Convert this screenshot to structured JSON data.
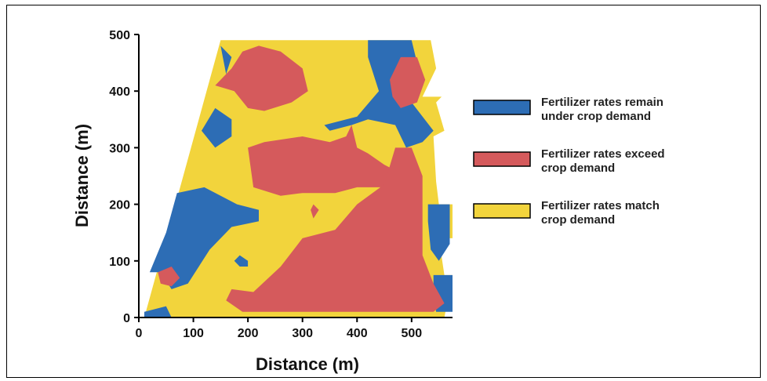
{
  "chart_data": {
    "type": "map",
    "xlabel": "Distance (m)",
    "ylabel": "Distance (m)",
    "xlim": [
      0,
      575
    ],
    "ylim": [
      0,
      500
    ],
    "xticks": [
      0,
      100,
      200,
      300,
      400,
      500
    ],
    "yticks": [
      0,
      100,
      200,
      300,
      400,
      500
    ],
    "colors": {
      "under": "#2d6db5",
      "exceed": "#d55a5c",
      "match": "#f2d43c"
    },
    "legend": [
      {
        "key": "under",
        "lines": [
          "Fertilizer rates remain",
          "under crop demand"
        ]
      },
      {
        "key": "exceed",
        "lines": [
          "Fertilizer rates exceed",
          "crop demand"
        ]
      },
      {
        "key": "match",
        "lines": [
          "Fertilizer rates match",
          "crop demand"
        ]
      }
    ],
    "legend_position": "right",
    "field_boundary": [
      [
        10,
        0
      ],
      [
        560,
        0
      ],
      [
        575,
        75
      ],
      [
        560,
        75
      ],
      [
        550,
        140
      ],
      [
        575,
        140
      ],
      [
        575,
        200
      ],
      [
        550,
        200
      ],
      [
        545,
        240
      ],
      [
        540,
        320
      ],
      [
        560,
        330
      ],
      [
        545,
        380
      ],
      [
        555,
        390
      ],
      [
        520,
        390
      ],
      [
        545,
        440
      ],
      [
        535,
        490
      ],
      [
        150,
        490
      ]
    ],
    "regions": [
      {
        "zone": "under",
        "points": [
          [
            10,
            0
          ],
          [
            60,
            0
          ],
          [
            50,
            20
          ],
          [
            10,
            10
          ]
        ]
      },
      {
        "zone": "under",
        "points": [
          [
            20,
            80
          ],
          [
            50,
            150
          ],
          [
            70,
            220
          ],
          [
            120,
            230
          ],
          [
            180,
            200
          ],
          [
            220,
            190
          ],
          [
            220,
            170
          ],
          [
            170,
            160
          ],
          [
            130,
            120
          ],
          [
            90,
            60
          ],
          [
            60,
            50
          ],
          [
            40,
            80
          ]
        ]
      },
      {
        "zone": "under",
        "points": [
          [
            185,
            110
          ],
          [
            200,
            100
          ],
          [
            200,
            90
          ],
          [
            185,
            90
          ],
          [
            175,
            100
          ]
        ]
      },
      {
        "zone": "under",
        "points": [
          [
            115,
            330
          ],
          [
            140,
            370
          ],
          [
            170,
            350
          ],
          [
            170,
            320
          ],
          [
            140,
            300
          ]
        ]
      },
      {
        "zone": "under",
        "points": [
          [
            150,
            480
          ],
          [
            160,
            430
          ],
          [
            170,
            460
          ]
        ]
      },
      {
        "zone": "under",
        "points": [
          [
            340,
            340
          ],
          [
            400,
            355
          ],
          [
            440,
            400
          ],
          [
            420,
            460
          ],
          [
            420,
            490
          ],
          [
            500,
            490
          ],
          [
            510,
            450
          ],
          [
            490,
            420
          ],
          [
            500,
            380
          ],
          [
            540,
            330
          ],
          [
            520,
            310
          ],
          [
            490,
            300
          ],
          [
            470,
            340
          ],
          [
            420,
            350
          ],
          [
            390,
            340
          ],
          [
            350,
            330
          ]
        ]
      },
      {
        "zone": "under",
        "points": [
          [
            530,
            200
          ],
          [
            570,
            200
          ],
          [
            570,
            130
          ],
          [
            550,
            100
          ],
          [
            535,
            120
          ],
          [
            530,
            170
          ]
        ]
      },
      {
        "zone": "under",
        "points": [
          [
            540,
            75
          ],
          [
            575,
            75
          ],
          [
            575,
            10
          ],
          [
            545,
            10
          ],
          [
            540,
            40
          ]
        ]
      },
      {
        "zone": "exceed",
        "points": [
          [
            35,
            80
          ],
          [
            60,
            90
          ],
          [
            75,
            70
          ],
          [
            60,
            55
          ],
          [
            40,
            60
          ]
        ]
      },
      {
        "zone": "exceed",
        "points": [
          [
            140,
            410
          ],
          [
            175,
            400
          ],
          [
            200,
            370
          ],
          [
            230,
            365
          ],
          [
            280,
            380
          ],
          [
            310,
            400
          ],
          [
            300,
            440
          ],
          [
            260,
            470
          ],
          [
            220,
            480
          ],
          [
            190,
            470
          ],
          [
            170,
            440
          ]
        ]
      },
      {
        "zone": "exceed",
        "points": [
          [
            200,
            300
          ],
          [
            230,
            310
          ],
          [
            300,
            320
          ],
          [
            350,
            310
          ],
          [
            380,
            320
          ],
          [
            390,
            340
          ],
          [
            400,
            300
          ],
          [
            420,
            290
          ],
          [
            450,
            270
          ],
          [
            480,
            255
          ],
          [
            460,
            230
          ],
          [
            400,
            230
          ],
          [
            360,
            220
          ],
          [
            300,
            220
          ],
          [
            260,
            215
          ],
          [
            210,
            230
          ]
        ]
      },
      {
        "zone": "exceed",
        "points": [
          [
            320,
            200
          ],
          [
            330,
            190
          ],
          [
            320,
            175
          ],
          [
            315,
            190
          ]
        ]
      },
      {
        "zone": "exceed",
        "points": [
          [
            170,
            50
          ],
          [
            210,
            45
          ],
          [
            260,
            90
          ],
          [
            300,
            140
          ],
          [
            360,
            155
          ],
          [
            400,
            200
          ],
          [
            450,
            235
          ],
          [
            470,
            300
          ],
          [
            500,
            300
          ],
          [
            520,
            250
          ],
          [
            520,
            170
          ],
          [
            520,
            110
          ],
          [
            540,
            60
          ],
          [
            560,
            25
          ],
          [
            540,
            10
          ],
          [
            190,
            10
          ],
          [
            160,
            30
          ]
        ]
      },
      {
        "zone": "exceed",
        "points": [
          [
            460,
            420
          ],
          [
            480,
            460
          ],
          [
            510,
            460
          ],
          [
            525,
            420
          ],
          [
            510,
            380
          ],
          [
            480,
            370
          ],
          [
            465,
            390
          ]
        ]
      }
    ]
  }
}
